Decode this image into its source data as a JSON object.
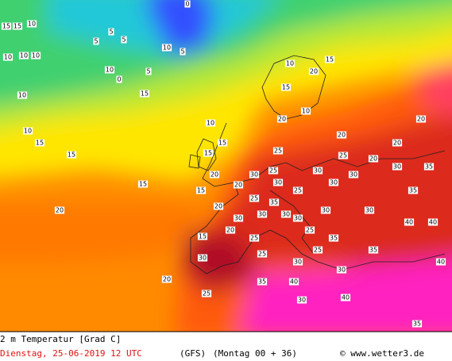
{
  "map": {
    "caption": "2 m Temperatur [Grad C]",
    "valid_time": "Dienstag, 25-06-2019  12 UTC",
    "model": "(GFS)",
    "run": "(Montag 00 + 36)",
    "copyright": "© www.wetter3.de",
    "labels": [
      15,
      15,
      10,
      10,
      10,
      10,
      5,
      5,
      5,
      0,
      10,
      5,
      0,
      10,
      5,
      10,
      15,
      15,
      10,
      15,
      20,
      15,
      10,
      15,
      20,
      10,
      15,
      15,
      20,
      20,
      25,
      30,
      25,
      30,
      30,
      35,
      30,
      25,
      30,
      30,
      25,
      30,
      20,
      20,
      20,
      20,
      30,
      35,
      40,
      40,
      35,
      40,
      35,
      30,
      25,
      20,
      25,
      20,
      15,
      25,
      30,
      35,
      40,
      30,
      35,
      30,
      40,
      25,
      30,
      15,
      20,
      30,
      25,
      30,
      25,
      20,
      15,
      10,
      30,
      35
    ]
  }
}
